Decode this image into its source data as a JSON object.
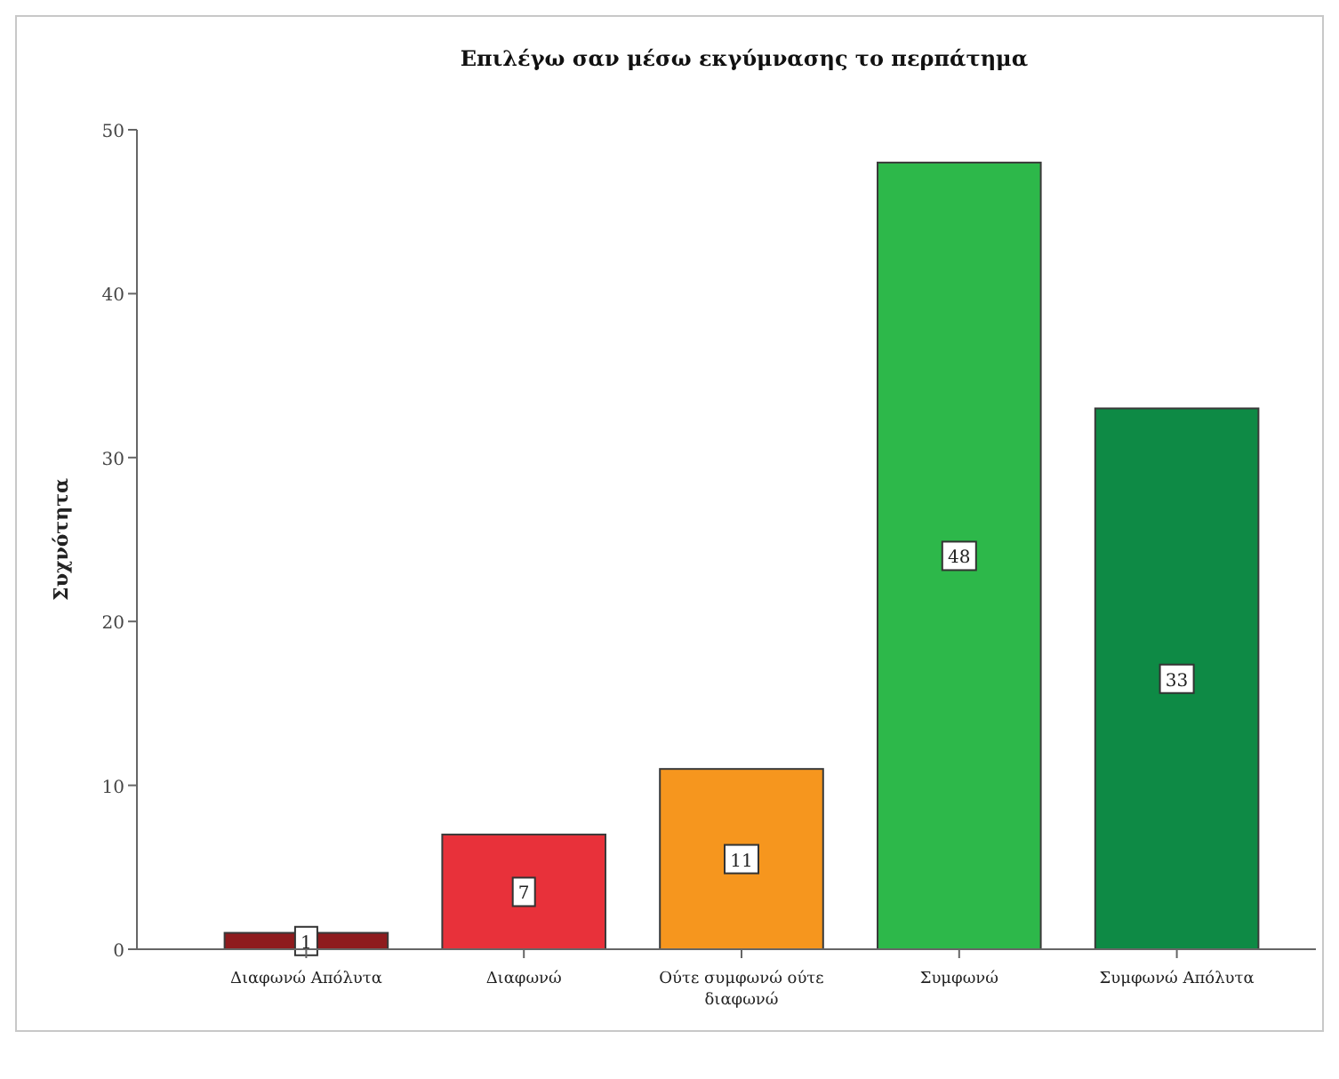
{
  "chart_data": {
    "type": "bar",
    "title": "Επιλέγω σαν μέσω εκγύμνασης το περπάτημα",
    "ylabel": "Συχνότητα",
    "categories": [
      "Διαφωνώ Απόλυτα",
      "Διαφωνώ",
      "Ούτε συμφωνώ ούτε διαφωνώ",
      "Συμφωνώ",
      "Συμφωνώ Απόλυτα"
    ],
    "values": [
      1,
      7,
      11,
      48,
      33
    ],
    "colors": [
      "#8e1b1e",
      "#e8313a",
      "#f6961e",
      "#2db84a",
      "#0e8a45"
    ],
    "ylim": [
      0,
      50
    ],
    "yticks": [
      0,
      10,
      20,
      30,
      40,
      50
    ],
    "grid": false,
    "data_labels": true
  }
}
